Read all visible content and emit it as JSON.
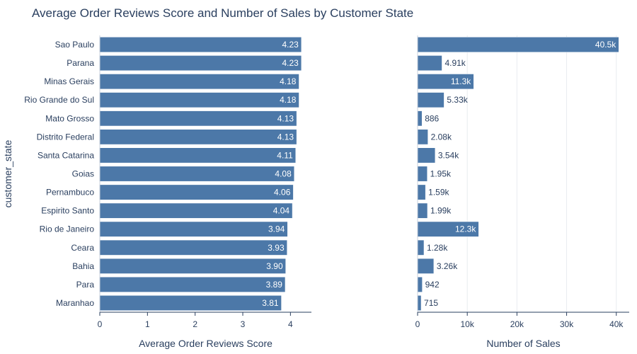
{
  "chart_data": {
    "type": "bar",
    "orientation": "horizontal",
    "title": "Average Order Reviews Score and Number of Sales by Customer State",
    "ylabel": "customer_state",
    "categories": [
      "Sao Paulo",
      "Parana",
      "Minas Gerais",
      "Rio Grande do Sul",
      "Mato Grosso",
      "Distrito Federal",
      "Santa Catarina",
      "Goias",
      "Pernambuco",
      "Espirito Santo",
      "Rio de Janeiro",
      "Ceara",
      "Bahia",
      "Para",
      "Maranhao"
    ],
    "panels": [
      {
        "xlabel": "Average Order Reviews Score",
        "xlim": [
          0,
          4.44
        ],
        "ticks": [
          0,
          1,
          2,
          3,
          4
        ],
        "tick_labels": [
          "0",
          "1",
          "2",
          "3",
          "4"
        ],
        "grid": false,
        "values": [
          4.23,
          4.23,
          4.18,
          4.18,
          4.13,
          4.13,
          4.11,
          4.08,
          4.06,
          4.04,
          3.94,
          3.93,
          3.9,
          3.89,
          3.81
        ],
        "labels": [
          "4.23",
          "4.23",
          "4.18",
          "4.18",
          "4.13",
          "4.13",
          "4.11",
          "4.08",
          "4.06",
          "4.04",
          "3.94",
          "3.93",
          "3.90",
          "3.89",
          "3.81"
        ]
      },
      {
        "xlabel": "Number of Sales",
        "xlim": [
          0,
          42600
        ],
        "ticks": [
          0,
          10000,
          20000,
          30000,
          40000
        ],
        "tick_labels": [
          "0",
          "10k",
          "20k",
          "30k",
          "40k"
        ],
        "grid": true,
        "values": [
          40500,
          4910,
          11300,
          5330,
          886,
          2080,
          3540,
          1950,
          1590,
          1990,
          12300,
          1280,
          3260,
          942,
          715
        ],
        "labels": [
          "40.5k",
          "4.91k",
          "11.3k",
          "5.33k",
          "886",
          "2.08k",
          "3.54k",
          "1.95k",
          "1.59k",
          "1.99k",
          "12.3k",
          "1.28k",
          "3.26k",
          "942",
          "715"
        ]
      }
    ],
    "colors": {
      "bar": "#4c78a8",
      "grid": "#e8ebf0",
      "axis": "#2a3f5f",
      "label_inside": "#ffffff"
    }
  }
}
